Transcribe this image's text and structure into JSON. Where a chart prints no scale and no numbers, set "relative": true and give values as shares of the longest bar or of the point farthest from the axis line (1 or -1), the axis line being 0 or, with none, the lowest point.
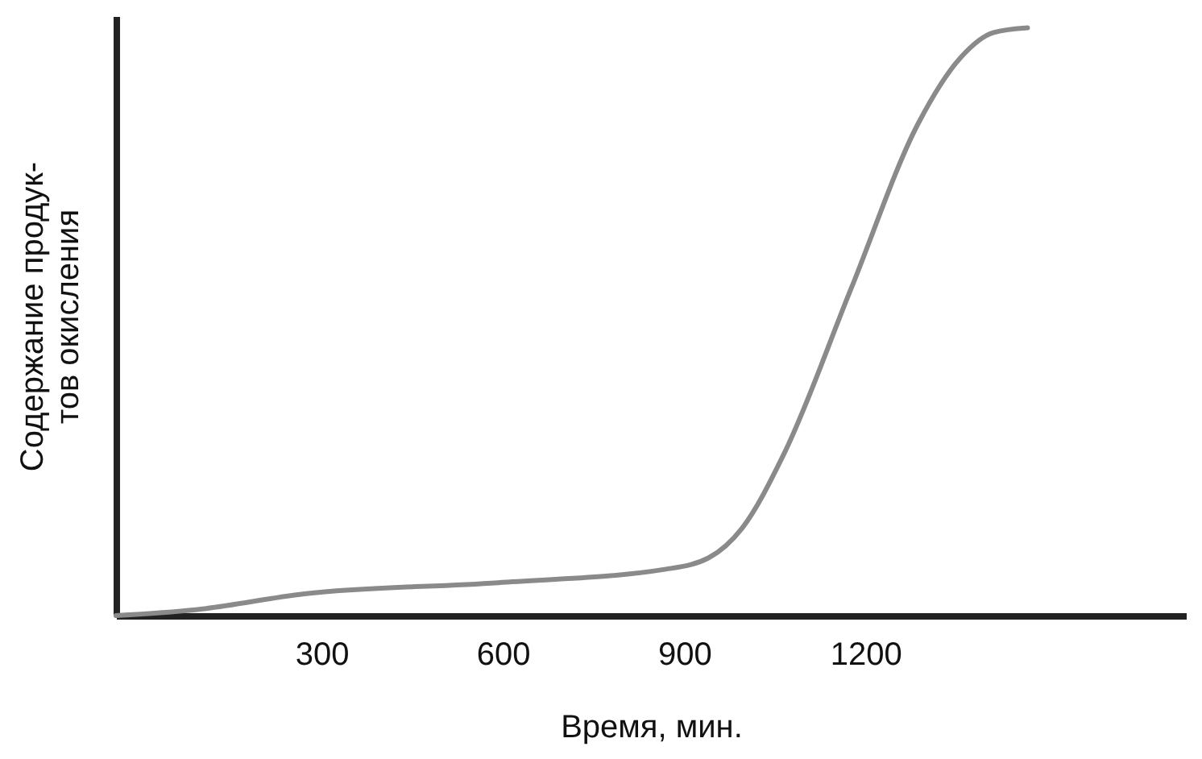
{
  "chart_data": {
    "type": "line",
    "relative": true,
    "xlabel": "Время, мин.",
    "ylabel": "Содержание продук-\nтов окисления",
    "x": [
      -40,
      92,
      272,
      592,
      870,
      940,
      996,
      1065,
      1176,
      1287,
      1357,
      1412,
      1468
    ],
    "series": [
      {
        "color": "#8a8a8a",
        "values": [
          0,
          0.01,
          0.037,
          0.056,
          0.079,
          0.098,
          0.149,
          0.275,
          0.556,
          0.837,
          0.949,
          0.992,
          1
        ]
      }
    ],
    "xlim": [
      -40,
      1730
    ],
    "xticks": [
      300,
      600,
      900,
      1200
    ],
    "grid": false,
    "line_style": "solid",
    "marker": "none"
  }
}
